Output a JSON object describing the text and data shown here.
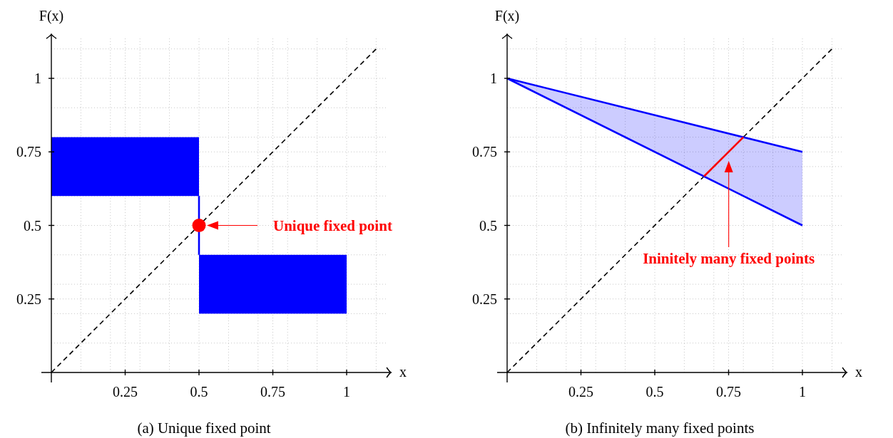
{
  "chart_data": [
    {
      "type": "line",
      "title": "(a) Unique fixed point",
      "xlabel": "x",
      "ylabel": "F(x)",
      "xlim": [
        0,
        1.15
      ],
      "ylim": [
        0,
        1.15
      ],
      "xticks": [
        {
          "value": 0.1,
          "label": null
        },
        {
          "value": 0.2,
          "label": null
        },
        0.25,
        {
          "value": 0.3,
          "label": null
        },
        {
          "value": 0.4,
          "label": null
        },
        0.5,
        {
          "value": 0.6,
          "label": null
        },
        {
          "value": 0.7,
          "label": null
        },
        0.75,
        {
          "value": 0.8,
          "label": null
        },
        {
          "value": 0.9,
          "label": null
        },
        1,
        {
          "value": 1.1,
          "label": null
        }
      ],
      "yticks": [
        {
          "value": 0.1,
          "label": null
        },
        {
          "value": 0.2,
          "label": null
        },
        0.25,
        {
          "value": 0.3,
          "label": null
        },
        {
          "value": 0.4,
          "label": null
        },
        0.5,
        {
          "value": 0.6,
          "label": null
        },
        {
          "value": 0.7,
          "label": null
        },
        0.75,
        {
          "value": 0.8,
          "label": null
        },
        {
          "value": 0.9,
          "label": null
        },
        1,
        {
          "value": 1.1,
          "label": null
        }
      ],
      "grid": true,
      "series": [
        {
          "color": "#000000",
          "line_style": "dashed",
          "x": [
            0,
            1.1
          ],
          "values": [
            0,
            1.1
          ]
        },
        {
          "type": "bar",
          "color": "#0000ff",
          "x": [
            0.25,
            0.75
          ],
          "base": [
            0.6,
            0.2
          ],
          "values": [
            0.2,
            0.2
          ]
        },
        {
          "color": "#0000ff",
          "line_style": "solid",
          "x": [
            0.5,
            0.5
          ],
          "values": [
            0.6,
            0.4
          ]
        },
        {
          "type": "scatter",
          "color": "#ff0000",
          "marker": "circle",
          "x": [
            0.5
          ],
          "values": [
            0.5
          ]
        }
      ],
      "annotations": [
        "Unique fixed point"
      ]
    },
    {
      "type": "line",
      "title": "(b) Infinitely many fixed points",
      "xlabel": "x",
      "ylabel": "F(x)",
      "xlim": [
        0,
        1.15
      ],
      "ylim": [
        0,
        1.15
      ],
      "xticks": [
        {
          "value": 0.1,
          "label": null
        },
        {
          "value": 0.2,
          "label": null
        },
        0.25,
        {
          "value": 0.3,
          "label": null
        },
        {
          "value": 0.4,
          "label": null
        },
        0.5,
        {
          "value": 0.6,
          "label": null
        },
        {
          "value": 0.7,
          "label": null
        },
        0.75,
        {
          "value": 0.8,
          "label": null
        },
        {
          "value": 0.9,
          "label": null
        },
        1,
        {
          "value": 1.1,
          "label": null
        }
      ],
      "yticks": [
        {
          "value": 0.1,
          "label": null
        },
        {
          "value": 0.2,
          "label": null
        },
        0.25,
        {
          "value": 0.3,
          "label": null
        },
        {
          "value": 0.4,
          "label": null
        },
        0.5,
        {
          "value": 0.6,
          "label": null
        },
        {
          "value": 0.7,
          "label": null
        },
        0.75,
        {
          "value": 0.8,
          "label": null
        },
        {
          "value": 0.9,
          "label": null
        },
        1,
        {
          "value": 1.1,
          "label": null
        }
      ],
      "grid": true,
      "series": [
        {
          "color": "#000000",
          "line_style": "dashed",
          "x": [
            0,
            1.1
          ],
          "values": [
            0,
            1.1
          ]
        },
        {
          "color": "#0000ff",
          "line_style": "solid",
          "x": [
            0,
            1
          ],
          "values": [
            1,
            0.75
          ],
          "lower": [
            1,
            0.5
          ],
          "upper": [
            1,
            0.75
          ]
        },
        {
          "color": "#0000ff",
          "line_style": "solid",
          "x": [
            0,
            1
          ],
          "values": [
            1,
            0.5
          ]
        },
        {
          "color": "#ff0000",
          "line_style": "solid",
          "x": [
            0.667,
            0.8
          ],
          "values": [
            0.667,
            0.8
          ]
        }
      ],
      "annotations": [
        "Ininitely many fixed points"
      ]
    }
  ]
}
